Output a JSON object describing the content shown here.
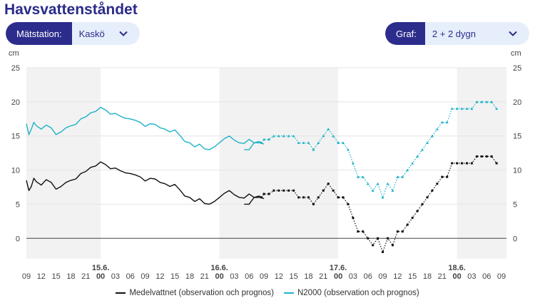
{
  "page": {
    "title": "Havsvattenståndet"
  },
  "controls": {
    "station": {
      "label": "Mätstation:",
      "value": "Kaskö"
    },
    "graph": {
      "label": "Graf:",
      "value": "2 + 2 dygn"
    }
  },
  "colors": {
    "black_series": "#111111",
    "cyan_series": "#1fb2c8",
    "band": "#f2f2f2",
    "grid": "#e4e4e4",
    "zero": "#444444",
    "accent": "#2c2c8c"
  },
  "chart_data": {
    "type": "line",
    "title": "",
    "ylabel": "cm",
    "ylim": [
      -3,
      25
    ],
    "yticks": [
      0,
      5,
      10,
      15,
      20,
      25
    ],
    "x_unit": "hours since 15.6. 09:00 (observation start)",
    "xlim": [
      0,
      96
    ],
    "x_tick_labels": [
      {
        "x": 0,
        "label": "09"
      },
      {
        "x": 3,
        "label": "12"
      },
      {
        "x": 6,
        "label": "15"
      },
      {
        "x": 9,
        "label": "18"
      },
      {
        "x": 12,
        "label": "21"
      },
      {
        "x": 15,
        "label": "00",
        "bold": true
      },
      {
        "x": 18,
        "label": "03"
      },
      {
        "x": 21,
        "label": "06"
      },
      {
        "x": 24,
        "label": "09"
      },
      {
        "x": 27,
        "label": "12"
      },
      {
        "x": 30,
        "label": "15"
      },
      {
        "x": 33,
        "label": "18"
      },
      {
        "x": 36,
        "label": "21"
      },
      {
        "x": 39,
        "label": "00",
        "bold": true
      },
      {
        "x": 42,
        "label": "03"
      },
      {
        "x": 45,
        "label": "06"
      },
      {
        "x": 48,
        "label": "09"
      },
      {
        "x": 51,
        "label": "12"
      },
      {
        "x": 54,
        "label": "15"
      },
      {
        "x": 57,
        "label": "18"
      },
      {
        "x": 60,
        "label": "21"
      },
      {
        "x": 63,
        "label": "00",
        "bold": true
      },
      {
        "x": 66,
        "label": "03"
      },
      {
        "x": 69,
        "label": "06"
      },
      {
        "x": 72,
        "label": "09"
      },
      {
        "x": 75,
        "label": "12"
      },
      {
        "x": 78,
        "label": "15"
      },
      {
        "x": 81,
        "label": "18"
      },
      {
        "x": 84,
        "label": "21"
      },
      {
        "x": 87,
        "label": "00",
        "bold": true
      },
      {
        "x": 90,
        "label": "03"
      },
      {
        "x": 93,
        "label": "06"
      },
      {
        "x": 96,
        "label": "09"
      }
    ],
    "date_labels": [
      {
        "x": 15,
        "label": "15.6."
      },
      {
        "x": 39,
        "label": "16.6."
      },
      {
        "x": 63,
        "label": "17.6."
      },
      {
        "x": 87,
        "label": "18.6."
      }
    ],
    "shaded_bands": [
      [
        0,
        15
      ],
      [
        39,
        63
      ],
      [
        87,
        97
      ]
    ],
    "legend": [
      "Medelvattnet (observation och prognos)",
      "N2000 (observation och prognos)"
    ],
    "series": [
      {
        "name": "Medelvattnet (observation och prognos)",
        "observation": [
          [
            0,
            8.5
          ],
          [
            0.5,
            7
          ],
          [
            1,
            7.6
          ],
          [
            1.5,
            8.8
          ],
          [
            2,
            8.3
          ],
          [
            3,
            7.8
          ],
          [
            4,
            8.6
          ],
          [
            5,
            8.2
          ],
          [
            6,
            7.2
          ],
          [
            7,
            7.6
          ],
          [
            8,
            8.2
          ],
          [
            9,
            8.5
          ],
          [
            10,
            8.7
          ],
          [
            11,
            9.5
          ],
          [
            12,
            9.8
          ],
          [
            13,
            10.4
          ],
          [
            14,
            10.6
          ],
          [
            15,
            11.2
          ],
          [
            16,
            10.8
          ],
          [
            17,
            10.2
          ],
          [
            18,
            10.3
          ],
          [
            19,
            9.9
          ],
          [
            20,
            9.6
          ],
          [
            21,
            9.5
          ],
          [
            22,
            9.3
          ],
          [
            23,
            9.0
          ],
          [
            24,
            8.4
          ],
          [
            25,
            8.8
          ],
          [
            26,
            8.7
          ],
          [
            27,
            8.2
          ],
          [
            28,
            8.0
          ],
          [
            29,
            7.6
          ],
          [
            30,
            7.9
          ],
          [
            31,
            7.1
          ],
          [
            32,
            6.2
          ],
          [
            33,
            6.0
          ],
          [
            34,
            5.4
          ],
          [
            35,
            5.8
          ],
          [
            36,
            5.1
          ],
          [
            37,
            5.0
          ],
          [
            38,
            5.4
          ],
          [
            39,
            6.0
          ],
          [
            40,
            6.6
          ],
          [
            41,
            7.0
          ],
          [
            42,
            6.4
          ],
          [
            43,
            6.0
          ],
          [
            44,
            5.9
          ],
          [
            45,
            6.5
          ],
          [
            46,
            6.0
          ],
          [
            47,
            6.2
          ],
          [
            48,
            5.8
          ]
        ],
        "observation_tail": [
          [
            44,
            5.0
          ],
          [
            45,
            5.0
          ],
          [
            45.5,
            5.5
          ],
          [
            46,
            6.0
          ],
          [
            47,
            6.0
          ],
          [
            47.5,
            6.0
          ]
        ],
        "forecast": [
          [
            47.5,
            6.0
          ],
          [
            48,
            6.5
          ],
          [
            49,
            6.5
          ],
          [
            50,
            7.0
          ],
          [
            51,
            7.0
          ],
          [
            52,
            7.0
          ],
          [
            53,
            7.0
          ],
          [
            54,
            7.0
          ],
          [
            55,
            6.0
          ],
          [
            56,
            6.0
          ],
          [
            57,
            6.0
          ],
          [
            58,
            5.0
          ],
          [
            59,
            6.0
          ],
          [
            60,
            7.0
          ],
          [
            61,
            8.0
          ],
          [
            62,
            7.0
          ],
          [
            63,
            6.0
          ],
          [
            64,
            6.0
          ],
          [
            65,
            5.0
          ],
          [
            66,
            3.0
          ],
          [
            67,
            1.0
          ],
          [
            68,
            1.0
          ],
          [
            69,
            0.0
          ],
          [
            70,
            -1.0
          ],
          [
            71,
            0.0
          ],
          [
            72,
            -2.0
          ],
          [
            73,
            0.0
          ],
          [
            74,
            -1.0
          ],
          [
            75,
            1.0
          ],
          [
            76,
            1.0
          ],
          [
            77,
            2.0
          ],
          [
            78,
            3.0
          ],
          [
            79,
            4.0
          ],
          [
            80,
            5.0
          ],
          [
            81,
            6.0
          ],
          [
            82,
            7.0
          ],
          [
            83,
            8.0
          ],
          [
            84,
            9.0
          ],
          [
            85,
            9.0
          ],
          [
            86,
            11.0
          ],
          [
            87,
            11.0
          ],
          [
            88,
            11.0
          ],
          [
            89,
            11.0
          ],
          [
            90,
            11.0
          ],
          [
            91,
            12.0
          ],
          [
            92,
            12.0
          ],
          [
            93,
            12.0
          ],
          [
            94,
            12.0
          ],
          [
            95,
            11.0
          ]
        ]
      },
      {
        "name": "N2000 (observation och prognos)",
        "observation": [
          [
            0,
            16.8
          ],
          [
            0.5,
            15.2
          ],
          [
            1,
            16.0
          ],
          [
            1.5,
            17.0
          ],
          [
            2,
            16.5
          ],
          [
            3,
            16.0
          ],
          [
            4,
            16.6
          ],
          [
            5,
            16.2
          ],
          [
            6,
            15.2
          ],
          [
            7,
            15.6
          ],
          [
            8,
            16.2
          ],
          [
            9,
            16.5
          ],
          [
            10,
            16.7
          ],
          [
            11,
            17.5
          ],
          [
            12,
            17.8
          ],
          [
            13,
            18.4
          ],
          [
            14,
            18.6
          ],
          [
            15,
            19.2
          ],
          [
            16,
            18.8
          ],
          [
            17,
            18.2
          ],
          [
            18,
            18.3
          ],
          [
            19,
            17.9
          ],
          [
            20,
            17.6
          ],
          [
            21,
            17.5
          ],
          [
            22,
            17.3
          ],
          [
            23,
            17.0
          ],
          [
            24,
            16.4
          ],
          [
            25,
            16.8
          ],
          [
            26,
            16.7
          ],
          [
            27,
            16.2
          ],
          [
            28,
            16.0
          ],
          [
            29,
            15.6
          ],
          [
            30,
            15.9
          ],
          [
            31,
            15.1
          ],
          [
            32,
            14.2
          ],
          [
            33,
            14.0
          ],
          [
            34,
            13.4
          ],
          [
            35,
            13.8
          ],
          [
            36,
            13.1
          ],
          [
            37,
            13.0
          ],
          [
            38,
            13.4
          ],
          [
            39,
            14.0
          ],
          [
            40,
            14.6
          ],
          [
            41,
            15.0
          ],
          [
            42,
            14.4
          ],
          [
            43,
            14.0
          ],
          [
            44,
            13.9
          ],
          [
            45,
            14.5
          ],
          [
            46,
            14.0
          ],
          [
            47,
            14.2
          ],
          [
            48,
            13.8
          ]
        ],
        "observation_tail": [
          [
            44,
            13.0
          ],
          [
            45,
            13.0
          ],
          [
            45.5,
            13.5
          ],
          [
            46,
            14.0
          ],
          [
            47,
            14.0
          ],
          [
            47.5,
            14.0
          ]
        ],
        "forecast": [
          [
            47.5,
            14.0
          ],
          [
            48,
            14.5
          ],
          [
            49,
            14.5
          ],
          [
            50,
            15.0
          ],
          [
            51,
            15.0
          ],
          [
            52,
            15.0
          ],
          [
            53,
            15.0
          ],
          [
            54,
            15.0
          ],
          [
            55,
            14.0
          ],
          [
            56,
            14.0
          ],
          [
            57,
            14.0
          ],
          [
            58,
            13.0
          ],
          [
            59,
            14.0
          ],
          [
            60,
            15.0
          ],
          [
            61,
            16.0
          ],
          [
            62,
            15.0
          ],
          [
            63,
            14.0
          ],
          [
            64,
            14.0
          ],
          [
            65,
            13.0
          ],
          [
            66,
            11.0
          ],
          [
            67,
            9.0
          ],
          [
            68,
            9.0
          ],
          [
            69,
            8.0
          ],
          [
            70,
            7.0
          ],
          [
            71,
            8.0
          ],
          [
            72,
            6.0
          ],
          [
            73,
            8.0
          ],
          [
            74,
            7.0
          ],
          [
            75,
            9.0
          ],
          [
            76,
            9.0
          ],
          [
            77,
            10.0
          ],
          [
            78,
            11.0
          ],
          [
            79,
            12.0
          ],
          [
            80,
            13.0
          ],
          [
            81,
            14.0
          ],
          [
            82,
            15.0
          ],
          [
            83,
            16.0
          ],
          [
            84,
            17.0
          ],
          [
            85,
            17.0
          ],
          [
            86,
            19.0
          ],
          [
            87,
            19.0
          ],
          [
            88,
            19.0
          ],
          [
            89,
            19.0
          ],
          [
            90,
            19.0
          ],
          [
            91,
            20.0
          ],
          [
            92,
            20.0
          ],
          [
            93,
            20.0
          ],
          [
            94,
            20.0
          ],
          [
            95,
            19.0
          ]
        ]
      }
    ]
  }
}
